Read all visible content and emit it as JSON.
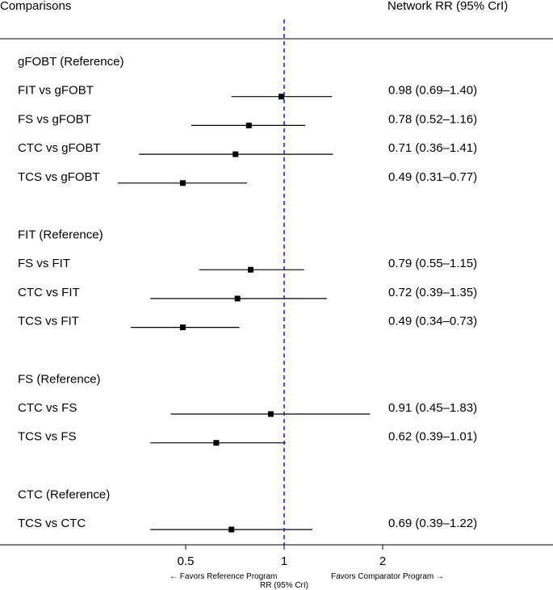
{
  "chart_data": {
    "type": "forest",
    "header": {
      "left": "Comparisons",
      "right": "Network RR (95% CrI)"
    },
    "xlabel": "RR (95% CrI)",
    "direction_left": "← Favors Reference Program",
    "direction_right": "Favors Comparator Program →",
    "xscale": "log2",
    "reference_line": 1,
    "ticks": [
      {
        "value": 0.5,
        "label": "0.5"
      },
      {
        "value": 1,
        "label": "1"
      },
      {
        "value": 2,
        "label": "2"
      }
    ],
    "groups": [
      {
        "title": "gFOBT (Reference)",
        "rows": [
          {
            "label": "FIT vs gFOBT",
            "rr": 0.98,
            "lo": 0.69,
            "hi": 1.4,
            "text": "0.98 (0.69–1.40)"
          },
          {
            "label": "FS vs gFOBT",
            "rr": 0.78,
            "lo": 0.52,
            "hi": 1.16,
            "text": "0.78 (0.52–1.16)"
          },
          {
            "label": "CTC vs gFOBT",
            "rr": 0.71,
            "lo": 0.36,
            "hi": 1.41,
            "text": "0.71 (0.36–1.41)"
          },
          {
            "label": "TCS vs gFOBT",
            "rr": 0.49,
            "lo": 0.31,
            "hi": 0.77,
            "text": "0.49 (0.31–0.77)"
          }
        ]
      },
      {
        "title": "FIT (Reference)",
        "rows": [
          {
            "label": "FS vs FIT",
            "rr": 0.79,
            "lo": 0.55,
            "hi": 1.15,
            "text": "0.79 (0.55–1.15)"
          },
          {
            "label": "CTC vs FIT",
            "rr": 0.72,
            "lo": 0.39,
            "hi": 1.35,
            "text": "0.72 (0.39–1.35)"
          },
          {
            "label": "TCS vs FIT",
            "rr": 0.49,
            "lo": 0.34,
            "hi": 0.73,
            "text": "0.49 (0.34–0.73)"
          }
        ]
      },
      {
        "title": "FS (Reference)",
        "rows": [
          {
            "label": "CTC vs FS",
            "rr": 0.91,
            "lo": 0.45,
            "hi": 1.83,
            "text": "0.91 (0.45–1.83)"
          },
          {
            "label": "TCS vs FS",
            "rr": 0.62,
            "lo": 0.39,
            "hi": 1.01,
            "text": "0.62 (0.39–1.01)"
          }
        ]
      },
      {
        "title": "CTC (Reference)",
        "rows": [
          {
            "label": "TCS vs CTC",
            "rr": 0.69,
            "lo": 0.39,
            "hi": 1.22,
            "text": "0.69 (0.39–1.22)"
          }
        ]
      }
    ]
  }
}
